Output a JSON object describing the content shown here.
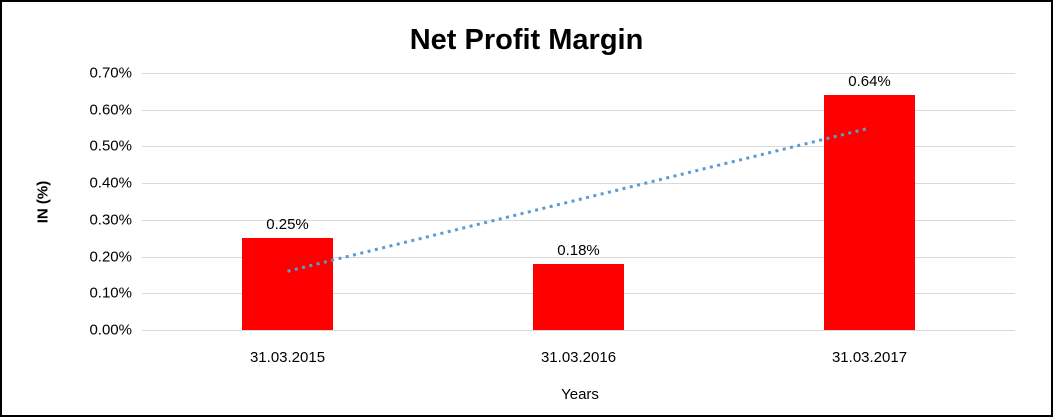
{
  "chart_data": {
    "type": "bar",
    "title": "Net Profit Margin",
    "xlabel": "Years",
    "ylabel": "IN (%)",
    "categories": [
      "31.03.2015",
      "31.03.2016",
      "31.03.2017"
    ],
    "values": [
      0.25,
      0.18,
      0.64
    ],
    "data_labels": [
      "0.25%",
      "0.18%",
      "0.64%"
    ],
    "ylim": [
      0,
      0.7
    ],
    "yticks": [
      {
        "value": 0.0,
        "label": "0.00%"
      },
      {
        "value": 0.1,
        "label": "0.10%"
      },
      {
        "value": 0.2,
        "label": "0.20%"
      },
      {
        "value": 0.3,
        "label": "0.30%"
      },
      {
        "value": 0.4,
        "label": "0.40%"
      },
      {
        "value": 0.5,
        "label": "0.50%"
      },
      {
        "value": 0.6,
        "label": "0.60%"
      },
      {
        "value": 0.7,
        "label": "0.70%"
      }
    ],
    "grid": true,
    "legend": "none",
    "bar_color": "#FF0000",
    "gridline_color": "#d9d9d9",
    "trendline": {
      "type": "linear",
      "style": "dotted",
      "color": "#5B9BD5",
      "start_value": 0.16,
      "end_value": 0.55
    }
  }
}
